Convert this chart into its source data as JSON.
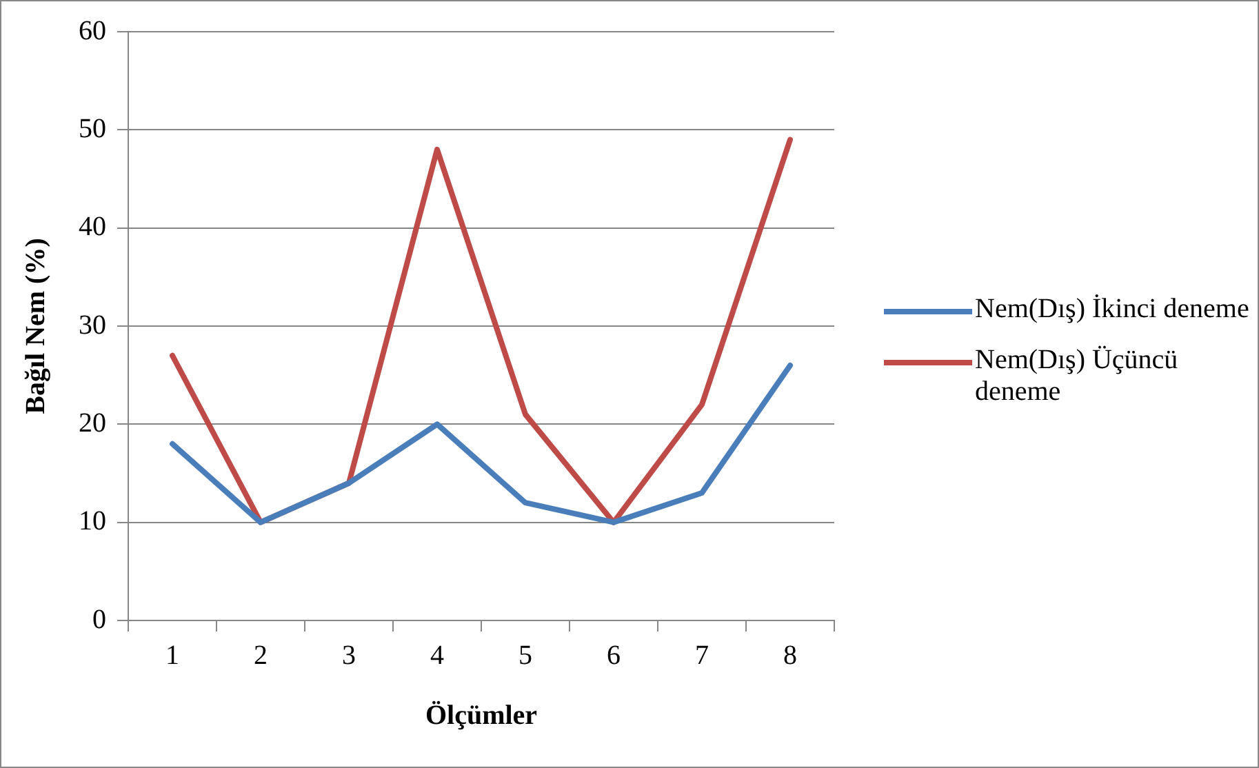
{
  "chart_data": {
    "type": "line",
    "xlabel": "Ölçümler",
    "ylabel": "Bağıl Nem (%)",
    "categories": [
      "1",
      "2",
      "3",
      "4",
      "5",
      "6",
      "7",
      "8"
    ],
    "series": [
      {
        "name": "Nem(Dış) İkinci deneme",
        "color": "#4a7ebb",
        "values": [
          18,
          10,
          14,
          20,
          12,
          10,
          13,
          26
        ]
      },
      {
        "name": "Nem(Dış) Üçüncü deneme",
        "color": "#be4b48",
        "values": [
          27,
          10,
          14,
          48,
          21,
          10,
          22,
          49
        ]
      }
    ],
    "ylim": [
      0,
      60
    ],
    "yticks": [
      0,
      10,
      20,
      30,
      40,
      50,
      60
    ],
    "grid": "y",
    "legend": "right",
    "marker": "none",
    "line_style": "solid"
  }
}
